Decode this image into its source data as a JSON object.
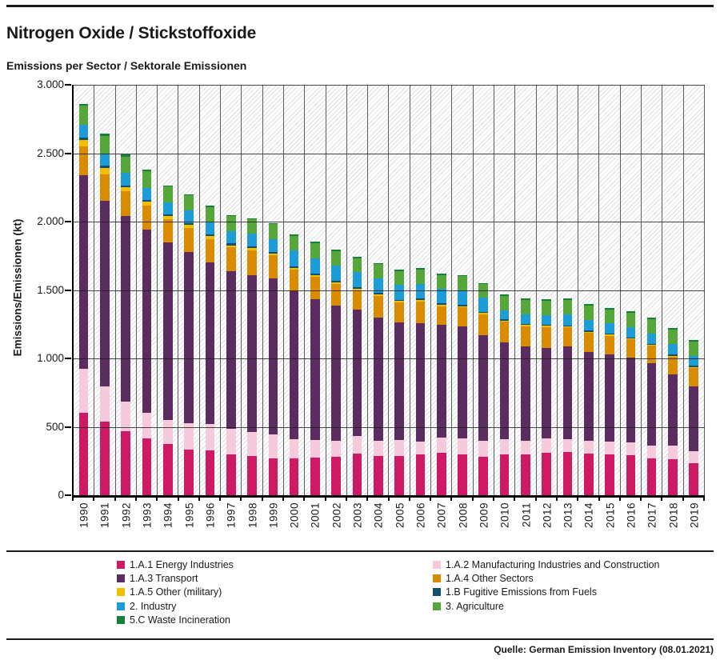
{
  "page": {
    "title": "Nitrogen Oxide / Stickstoffoxide",
    "subtitle": "Emissions per Sector / Sektorale Emissionen",
    "source": "Quelle: German Emission Inventory (08.01.2021)"
  },
  "chart_data": {
    "type": "bar",
    "stacked": true,
    "title": "Emissions per Sector / Sektorale Emissionen",
    "ylabel": "Emissions/Emissionen (kt)",
    "xlabel": "",
    "ylim": [
      0,
      3000
    ],
    "ytick_values": [
      0,
      500,
      1000,
      1500,
      2000,
      2500,
      3000
    ],
    "ytick_labels": [
      "0",
      "500",
      "1.000",
      "1.500",
      "2.000",
      "2.500",
      "3.000"
    ],
    "grid": "horizontal gridlines every 500, vertical separators per year, hatched plot background",
    "legend_position": "bottom, two columns",
    "categories": [
      "1990",
      "1991",
      "1992",
      "1993",
      "1994",
      "1995",
      "1996",
      "1997",
      "1998",
      "1999",
      "2000",
      "2001",
      "2002",
      "2003",
      "2004",
      "2005",
      "2006",
      "2007",
      "2008",
      "2009",
      "2010",
      "2011",
      "2012",
      "2013",
      "2014",
      "2015",
      "2016",
      "2017",
      "2018",
      "2019"
    ],
    "series": [
      {
        "name": "1.A.1 Energy Industries",
        "color": "#CE1964",
        "values": [
          604,
          541,
          467,
          414,
          375,
          336,
          326,
          301,
          287,
          271,
          268,
          277,
          283,
          303,
          287,
          287,
          297,
          311,
          297,
          283,
          297,
          297,
          311,
          315,
          303,
          297,
          291,
          271,
          264,
          233
        ]
      },
      {
        "name": "1.A.2 Manufacturing Industries and Construction",
        "color": "#F7C9DC",
        "values": [
          318,
          254,
          215,
          190,
          172,
          190,
          196,
          185,
          176,
          172,
          140,
          127,
          117,
          131,
          113,
          117,
          97,
          113,
          117,
          117,
          111,
          103,
          103,
          93,
          97,
          97,
          98,
          91,
          98,
          89
        ]
      },
      {
        "name": "1.A.3 Transport",
        "color": "#5B2C5F",
        "values": [
          1420,
          1357,
          1360,
          1340,
          1299,
          1250,
          1177,
          1149,
          1143,
          1143,
          1086,
          1026,
          985,
          922,
          899,
          860,
          866,
          824,
          821,
          770,
          707,
          688,
          664,
          680,
          649,
          636,
          617,
          603,
          521,
          475
        ]
      },
      {
        "name": "1.A.4 Other Sectors",
        "color": "#D98C00",
        "values": [
          207,
          196,
          180,
          176,
          172,
          176,
          174,
          176,
          186,
          170,
          156,
          168,
          161,
          143,
          160,
          148,
          158,
          135,
          138,
          154,
          152,
          147,
          152,
          138,
          139,
          135,
          132,
          127,
          131,
          133
        ]
      },
      {
        "name": "1.A.5 Other (military)",
        "color": "#F4BE00",
        "values": [
          47,
          45,
          31,
          27,
          23,
          25,
          23,
          16,
          15,
          12,
          12,
          12,
          12,
          12,
          8,
          8,
          8,
          8,
          8,
          8,
          10,
          9,
          8,
          8,
          8,
          8,
          8,
          6,
          6,
          6
        ]
      },
      {
        "name": "1.B Fugitive Emissions from Fuels",
        "color": "#14506E",
        "values": [
          19,
          14,
          12,
          12,
          10,
          14,
          12,
          13,
          14,
          13,
          12,
          9,
          9,
          12,
          12,
          10,
          10,
          10,
          9,
          10,
          10,
          10,
          10,
          9,
          10,
          10,
          9,
          10,
          10,
          9
        ]
      },
      {
        "name": "2. Industry",
        "color": "#1E9CD8",
        "values": [
          94,
          91,
          90,
          86,
          88,
          94,
          88,
          88,
          91,
          88,
          113,
          114,
          111,
          109,
          108,
          107,
          110,
          107,
          108,
          101,
          64,
          69,
          70,
          79,
          74,
          72,
          73,
          74,
          74,
          74
        ]
      },
      {
        "name": "3. Agriculture",
        "color": "#57A639",
        "values": [
          137,
          129,
          121,
          121,
          117,
          111,
          111,
          111,
          104,
          111,
          110,
          109,
          105,
          102,
          101,
          102,
          103,
          102,
          103,
          100,
          107,
          107,
          105,
          105,
          105,
          104,
          105,
          105,
          105,
          105
        ]
      },
      {
        "name": "5.C Waste Incineration",
        "color": "#157F3C",
        "values": [
          13,
          14,
          14,
          12,
          9,
          6,
          12,
          10,
          10,
          10,
          12,
          12,
          12,
          9,
          10,
          9,
          10,
          9,
          10,
          10,
          10,
          10,
          10,
          12,
          12,
          12,
          12,
          12,
          12,
          12
        ]
      }
    ],
    "stack_order_bottom_to_top": [
      "1.A.1 Energy Industries",
      "1.A.2 Manufacturing Industries and Construction",
      "1.A.3 Transport",
      "1.A.4 Other Sectors",
      "1.A.5 Other (military)",
      "1.B Fugitive Emissions from Fuels",
      "2. Industry",
      "3. Agriculture",
      "5.C Waste Incineration"
    ],
    "legend_columns": [
      [
        0,
        2,
        4,
        6,
        8
      ],
      [
        1,
        3,
        5,
        7
      ]
    ]
  }
}
